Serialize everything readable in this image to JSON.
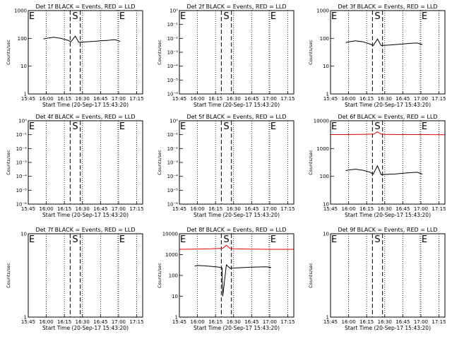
{
  "chart_data": [
    {
      "type": "line",
      "title": "Det 1f BLACK = Events, RED = LLD",
      "xlabel": "Start Time (20-Sep-17 15:43:20)",
      "ylabel": "Counts/sec",
      "yscale": "log",
      "ylim_exp": [
        0,
        3
      ],
      "yticks": [
        "1",
        "10",
        "100",
        "1000"
      ],
      "xlim": [
        15.75,
        17.333
      ],
      "xticks": [
        "15:45",
        "16:00",
        "16:15",
        "16:30",
        "16:45",
        "17:00",
        "17:15"
      ],
      "markers": {
        "E_left": "E",
        "S": "S",
        "E_right": "E"
      },
      "series": [
        {
          "name": "BLACK",
          "color": "#000000",
          "x": [
            15.96,
            16.0,
            16.1,
            16.2,
            16.3,
            16.34,
            16.4,
            16.45,
            16.55,
            16.65,
            16.75,
            16.85,
            16.95,
            17.02
          ],
          "y": [
            95,
            100,
            110,
            100,
            85,
            75,
            120,
            72,
            75,
            78,
            82,
            85,
            90,
            78
          ]
        }
      ]
    },
    {
      "type": "line",
      "title": "Det 2f BLACK = Events, RED = LLD",
      "xlabel": "Start Time (20-Sep-17 15:43:20)",
      "ylabel": "Counts/sec",
      "yscale": "log",
      "ylim_exp": [
        -6,
        0
      ],
      "yticks": [
        "10⁻⁶",
        "10⁻⁵",
        "10⁻⁴",
        "10⁻³",
        "10⁻²",
        "10⁻¹",
        "10⁰"
      ],
      "xlim": [
        15.75,
        17.333
      ],
      "xticks": [
        "15:45",
        "16:00",
        "16:15",
        "16:30",
        "16:45",
        "17:00",
        "17:15"
      ],
      "markers": {
        "E_left": "E",
        "S": "S",
        "E_right": "E"
      },
      "series": []
    },
    {
      "type": "line",
      "title": "Det 3f BLACK = Events, RED = LLD",
      "xlabel": "Start Time (20-Sep-17 15:43:20)",
      "ylabel": "Counts/sec",
      "yscale": "log",
      "ylim_exp": [
        0,
        3
      ],
      "yticks": [
        "1",
        "10",
        "100",
        "1000"
      ],
      "xlim": [
        15.75,
        17.333
      ],
      "xticks": [
        "15:45",
        "16:00",
        "16:15",
        "16:30",
        "16:45",
        "17:00",
        "17:15"
      ],
      "markers": {
        "E_left": "E",
        "S": "S",
        "E_right": "E"
      },
      "series": [
        {
          "name": "BLACK",
          "color": "#000000",
          "x": [
            15.96,
            16.0,
            16.1,
            16.2,
            16.3,
            16.34,
            16.4,
            16.45,
            16.55,
            16.65,
            16.75,
            16.85,
            16.95,
            17.02
          ],
          "y": [
            70,
            75,
            82,
            75,
            62,
            55,
            95,
            55,
            57,
            60,
            63,
            66,
            68,
            60
          ]
        }
      ]
    },
    {
      "type": "line",
      "title": "Det 4f BLACK = Events, RED = LLD",
      "xlabel": "Start Time (20-Sep-17 15:43:20)",
      "ylabel": "Counts/sec",
      "yscale": "log",
      "ylim_exp": [
        -6,
        0
      ],
      "yticks": [
        "10⁻⁶",
        "10⁻⁵",
        "10⁻⁴",
        "10⁻³",
        "10⁻²",
        "10⁻¹",
        "10⁰"
      ],
      "xlim": [
        15.75,
        17.333
      ],
      "xticks": [
        "15:45",
        "16:00",
        "16:15",
        "16:30",
        "16:45",
        "17:00",
        "17:15"
      ],
      "markers": {
        "E_left": "E",
        "S": "S",
        "E_right": "E"
      },
      "series": []
    },
    {
      "type": "line",
      "title": "Det 5f BLACK = Events, RED = LLD",
      "xlabel": "Start Time (20-Sep-17 15:43:20)",
      "ylabel": "Counts/sec",
      "yscale": "log",
      "ylim_exp": [
        -6,
        0
      ],
      "yticks": [
        "10⁻⁶",
        "10⁻⁵",
        "10⁻⁴",
        "10⁻³",
        "10⁻²",
        "10⁻¹",
        "10⁰"
      ],
      "xlim": [
        15.75,
        17.333
      ],
      "xticks": [
        "15:45",
        "16:00",
        "16:15",
        "16:30",
        "16:45",
        "17:00",
        "17:15"
      ],
      "markers": {
        "E_left": "E",
        "S": "S",
        "E_right": "E"
      },
      "series": []
    },
    {
      "type": "line",
      "title": "Det 6f BLACK = Events, RED = LLD",
      "xlabel": "Start Time (20-Sep-17 15:43:20)",
      "ylabel": "Counts/sec",
      "yscale": "log",
      "ylim_exp": [
        1,
        4
      ],
      "yticks": [
        "10",
        "100",
        "1000",
        "10000"
      ],
      "xlim": [
        15.75,
        17.333
      ],
      "xticks": [
        "15:45",
        "16:00",
        "16:15",
        "16:30",
        "16:45",
        "17:00",
        "17:15"
      ],
      "markers": {
        "E_left": "E",
        "S": "S",
        "E_right": "E"
      },
      "series": [
        {
          "name": "RED",
          "color": "#e00000",
          "x": [
            15.75,
            16.0,
            16.2,
            16.35,
            16.4,
            16.45,
            16.5,
            16.7,
            17.0,
            17.333
          ],
          "y": [
            3200,
            3200,
            3250,
            3300,
            4000,
            3300,
            3250,
            3200,
            3200,
            3150
          ]
        },
        {
          "name": "BLACK",
          "color": "#000000",
          "x": [
            15.96,
            16.0,
            16.1,
            16.2,
            16.3,
            16.34,
            16.4,
            16.45,
            16.55,
            16.65,
            16.75,
            16.85,
            16.95,
            17.02
          ],
          "y": [
            160,
            170,
            180,
            165,
            140,
            120,
            240,
            115,
            118,
            122,
            128,
            135,
            140,
            120
          ]
        }
      ]
    },
    {
      "type": "line",
      "title": "Det 7f BLACK = Events, RED = LLD",
      "xlabel": "Start Time (20-Sep-17 15:43:20)",
      "ylabel": "Counts/sec",
      "yscale": "log",
      "ylim_exp": [
        0,
        1
      ],
      "yticks": [
        "1",
        "10"
      ],
      "xlim": [
        15.75,
        17.333
      ],
      "xticks": [
        "15:45",
        "16:00",
        "16:15",
        "16:30",
        "16:45",
        "17:00",
        "17:15"
      ],
      "markers": {
        "E_left": "E",
        "S": "S",
        "E_right": "E"
      },
      "series": []
    },
    {
      "type": "line",
      "title": "Det 8f BLACK = Events, RED = LLD",
      "xlabel": "Start Time (20-Sep-17 15:43:20)",
      "ylabel": "Counts/sec",
      "yscale": "log",
      "ylim_exp": [
        0,
        4
      ],
      "yticks": [
        "1",
        "10",
        "100",
        "1000",
        "10000"
      ],
      "xlim": [
        15.75,
        17.333
      ],
      "xticks": [
        "15:45",
        "16:00",
        "16:15",
        "16:30",
        "16:45",
        "17:00",
        "17:15"
      ],
      "markers": {
        "E_left": "E",
        "S": "S",
        "E_right": "E"
      },
      "series": [
        {
          "name": "RED",
          "color": "#e00000",
          "x": [
            15.75,
            16.0,
            16.2,
            16.35,
            16.4,
            16.45,
            16.5,
            16.7,
            17.0,
            17.333
          ],
          "y": [
            1800,
            1850,
            1900,
            2000,
            2800,
            2000,
            1900,
            1850,
            1800,
            1800
          ]
        },
        {
          "name": "BLACK",
          "color": "#000000",
          "x": [
            15.96,
            16.0,
            16.1,
            16.2,
            16.3,
            16.34,
            16.35,
            16.4,
            16.45,
            16.55,
            16.65,
            16.75,
            16.85,
            16.95,
            17.02
          ],
          "y": [
            280,
            300,
            290,
            270,
            250,
            230,
            10,
            320,
            220,
            230,
            240,
            250,
            255,
            260,
            240
          ]
        }
      ]
    },
    {
      "type": "line",
      "title": "Det 9f BLACK = Events, RED = LLD",
      "xlabel": "Start Time (20-Sep-17 15:43:20)",
      "ylabel": "Counts/sec",
      "yscale": "log",
      "ylim_exp": [
        0,
        1
      ],
      "yticks": [
        "1",
        "10"
      ],
      "xlim": [
        15.75,
        17.333
      ],
      "xticks": [
        "15:45",
        "16:00",
        "16:15",
        "16:30",
        "16:45",
        "17:00",
        "17:15"
      ],
      "markers": {
        "E_left": "E",
        "S": "S",
        "E_right": "E"
      },
      "series": []
    }
  ],
  "event_times": {
    "E_left": 15.75,
    "dotted": [
      16.0,
      16.25,
      16.5,
      16.75,
      17.0,
      17.25
    ],
    "S_dashed": [
      16.33,
      16.47
    ],
    "E_right": 16.99
  }
}
